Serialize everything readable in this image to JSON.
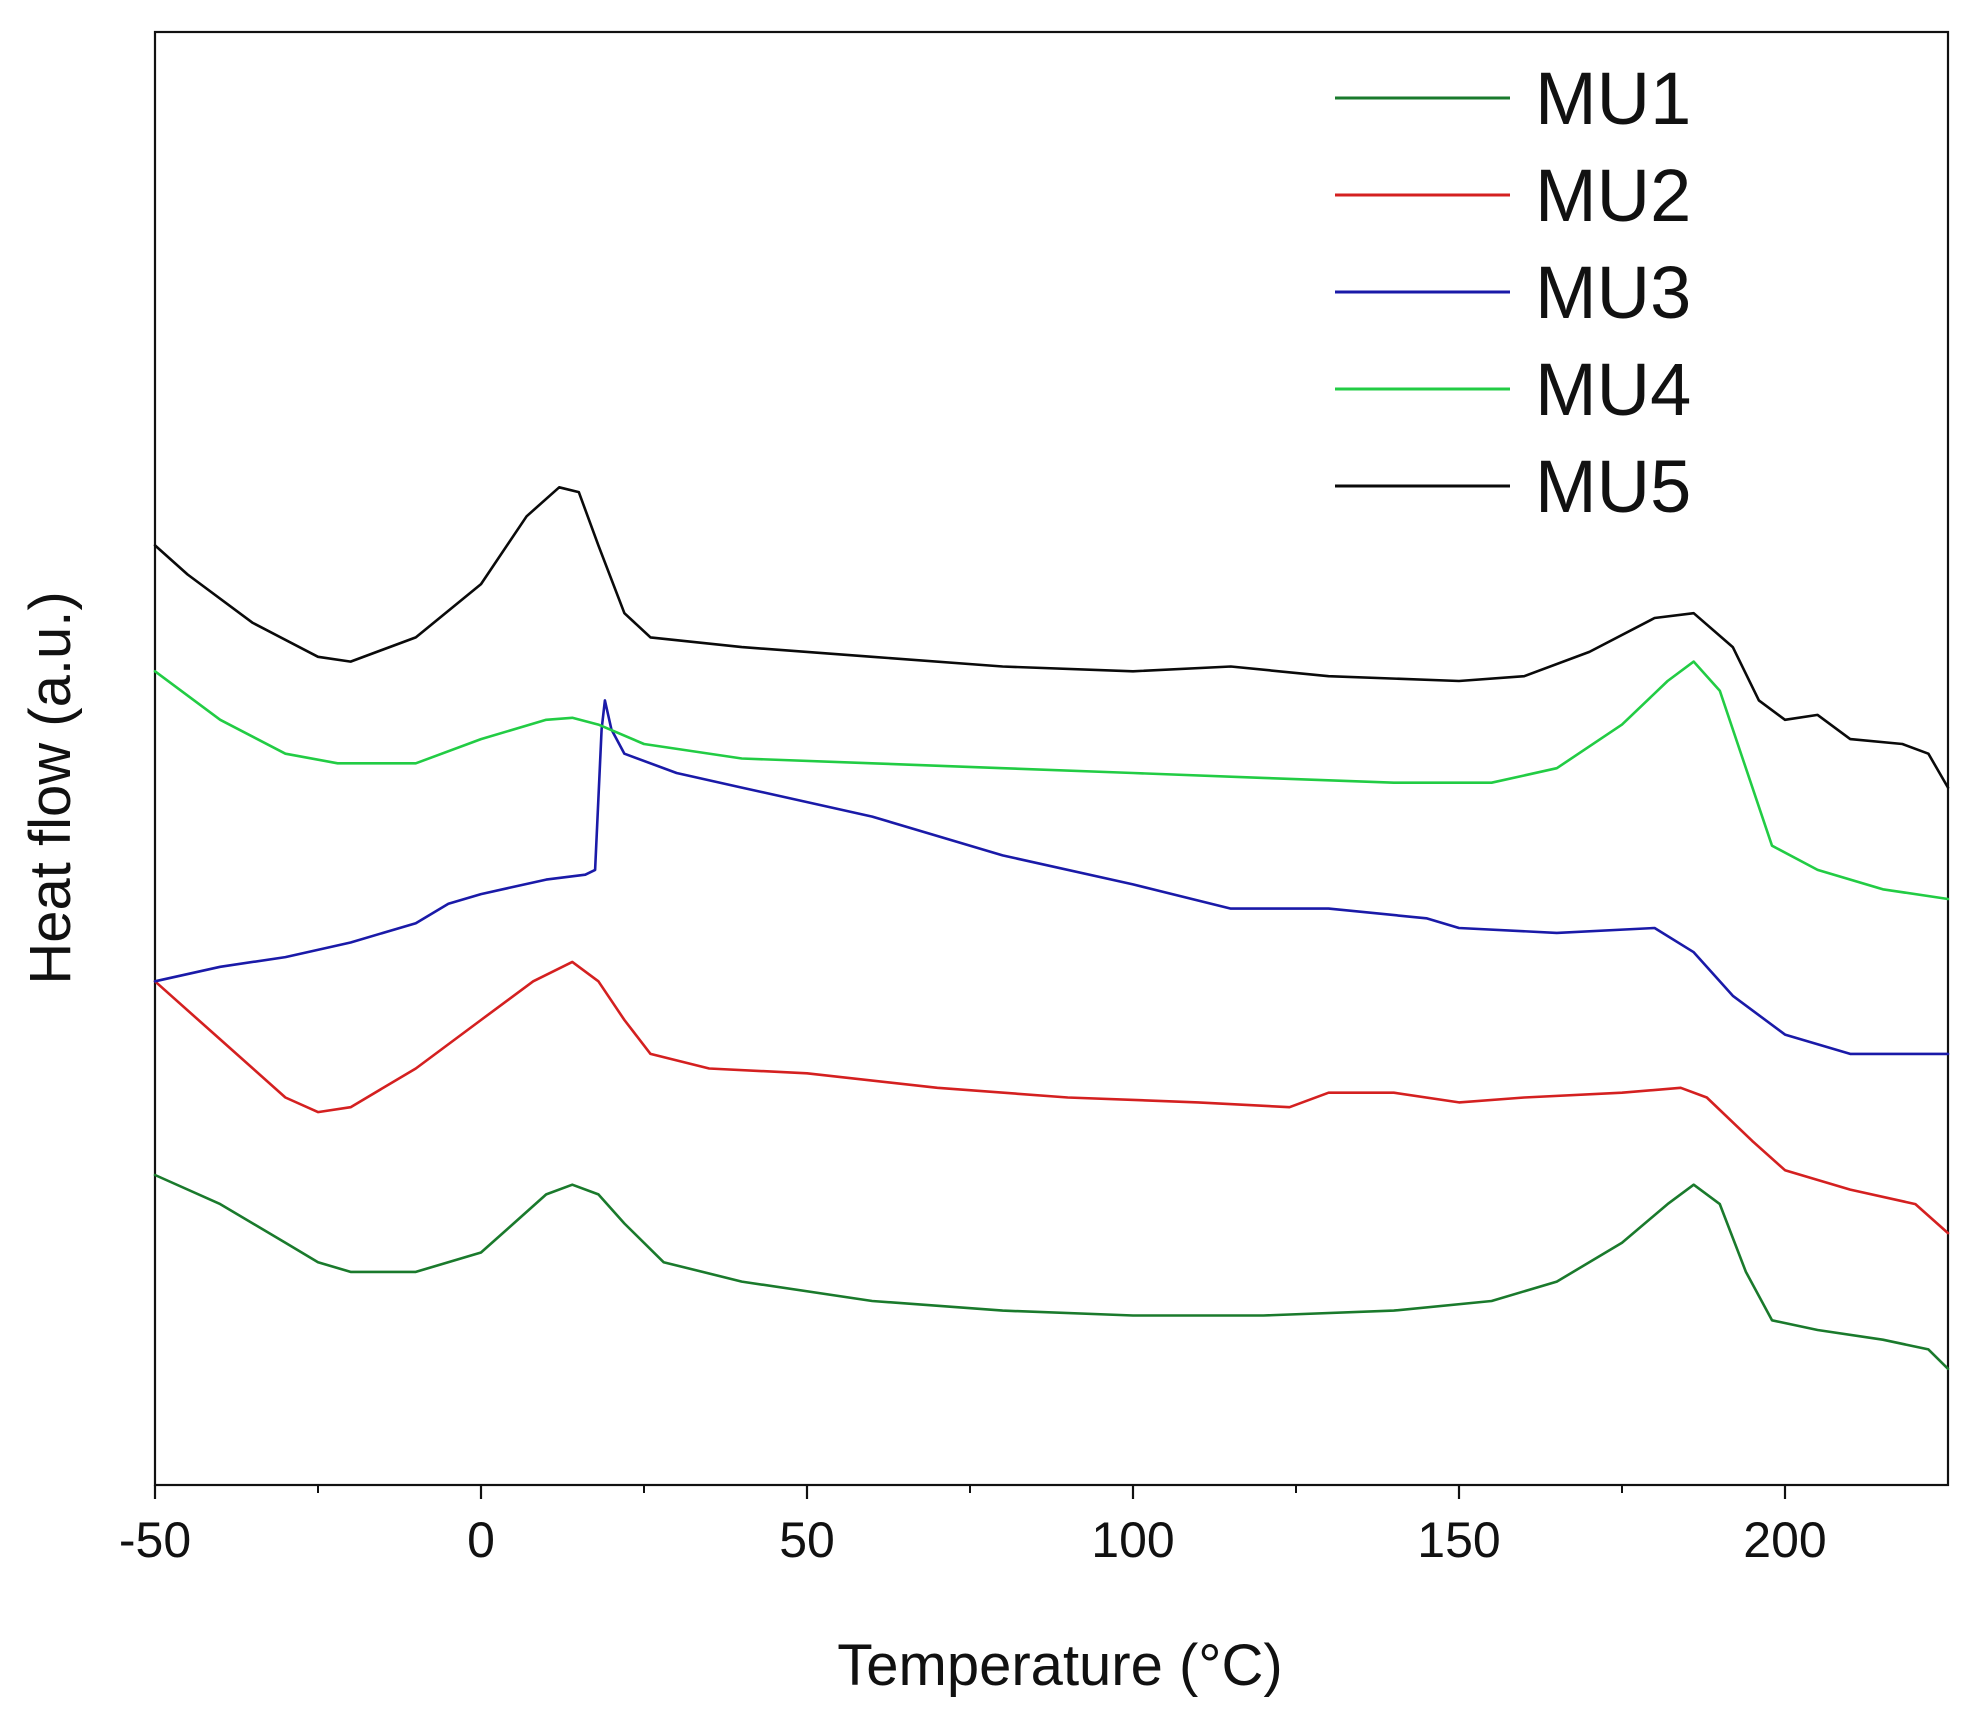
{
  "chart_data": {
    "type": "line",
    "title": "",
    "xlabel": "Temperature (°C)",
    "ylabel": "Heat flow (a.u.)",
    "xlim": [
      -50,
      225
    ],
    "ylim": [
      0,
      15
    ],
    "x_ticks": [
      -50,
      0,
      50,
      100,
      150,
      200
    ],
    "x_tick_labels": [
      "-50",
      "0",
      "50",
      "100",
      "150",
      "200"
    ],
    "x_minor_ticks": [
      -25,
      25,
      75,
      125,
      175
    ],
    "yticks_visible": false,
    "grid": false,
    "legend_position": "top-right",
    "series": [
      {
        "name": "MU1",
        "color": "#1a7a2c",
        "points": [
          [
            -50,
            3.2
          ],
          [
            -40,
            2.9
          ],
          [
            -30,
            2.5
          ],
          [
            -25,
            2.3
          ],
          [
            -20,
            2.2
          ],
          [
            -10,
            2.2
          ],
          [
            0,
            2.4
          ],
          [
            5,
            2.7
          ],
          [
            10,
            3.0
          ],
          [
            14,
            3.1
          ],
          [
            18,
            3.0
          ],
          [
            22,
            2.7
          ],
          [
            28,
            2.3
          ],
          [
            40,
            2.1
          ],
          [
            60,
            1.9
          ],
          [
            80,
            1.8
          ],
          [
            100,
            1.75
          ],
          [
            120,
            1.75
          ],
          [
            140,
            1.8
          ],
          [
            155,
            1.9
          ],
          [
            165,
            2.1
          ],
          [
            175,
            2.5
          ],
          [
            182,
            2.9
          ],
          [
            186,
            3.1
          ],
          [
            190,
            2.9
          ],
          [
            194,
            2.2
          ],
          [
            198,
            1.7
          ],
          [
            205,
            1.6
          ],
          [
            215,
            1.5
          ],
          [
            222,
            1.4
          ],
          [
            225,
            1.2
          ]
        ]
      },
      {
        "name": "MU2",
        "color": "#d42020",
        "points": [
          [
            -50,
            5.2
          ],
          [
            -40,
            4.6
          ],
          [
            -30,
            4.0
          ],
          [
            -25,
            3.85
          ],
          [
            -20,
            3.9
          ],
          [
            -10,
            4.3
          ],
          [
            0,
            4.8
          ],
          [
            8,
            5.2
          ],
          [
            14,
            5.4
          ],
          [
            18,
            5.2
          ],
          [
            22,
            4.8
          ],
          [
            26,
            4.45
          ],
          [
            35,
            4.3
          ],
          [
            50,
            4.25
          ],
          [
            70,
            4.1
          ],
          [
            90,
            4.0
          ],
          [
            110,
            3.95
          ],
          [
            124,
            3.9
          ],
          [
            130,
            4.05
          ],
          [
            140,
            4.05
          ],
          [
            150,
            3.95
          ],
          [
            160,
            4.0
          ],
          [
            175,
            4.05
          ],
          [
            184,
            4.1
          ],
          [
            188,
            4.0
          ],
          [
            195,
            3.55
          ],
          [
            200,
            3.25
          ],
          [
            210,
            3.05
          ],
          [
            220,
            2.9
          ],
          [
            225,
            2.6
          ]
        ]
      },
      {
        "name": "MU3",
        "color": "#1a1aa8",
        "points": [
          [
            -50,
            5.2
          ],
          [
            -40,
            5.35
          ],
          [
            -30,
            5.45
          ],
          [
            -20,
            5.6
          ],
          [
            -10,
            5.8
          ],
          [
            -5,
            6.0
          ],
          [
            0,
            6.1
          ],
          [
            10,
            6.25
          ],
          [
            16,
            6.3
          ],
          [
            17.5,
            6.35
          ],
          [
            18.5,
            7.8
          ],
          [
            19,
            8.1
          ],
          [
            20,
            7.8
          ],
          [
            22,
            7.55
          ],
          [
            30,
            7.35
          ],
          [
            40,
            7.2
          ],
          [
            60,
            6.9
          ],
          [
            80,
            6.5
          ],
          [
            100,
            6.2
          ],
          [
            115,
            5.95
          ],
          [
            130,
            5.95
          ],
          [
            145,
            5.85
          ],
          [
            150,
            5.75
          ],
          [
            165,
            5.7
          ],
          [
            180,
            5.75
          ],
          [
            186,
            5.5
          ],
          [
            192,
            5.05
          ],
          [
            200,
            4.65
          ],
          [
            210,
            4.45
          ],
          [
            225,
            4.45
          ]
        ]
      },
      {
        "name": "MU4",
        "color": "#22cc44",
        "points": [
          [
            -50,
            8.4
          ],
          [
            -40,
            7.9
          ],
          [
            -30,
            7.55
          ],
          [
            -22,
            7.45
          ],
          [
            -10,
            7.45
          ],
          [
            0,
            7.7
          ],
          [
            10,
            7.9
          ],
          [
            14,
            7.92
          ],
          [
            18,
            7.85
          ],
          [
            25,
            7.65
          ],
          [
            40,
            7.5
          ],
          [
            60,
            7.45
          ],
          [
            80,
            7.4
          ],
          [
            100,
            7.35
          ],
          [
            120,
            7.3
          ],
          [
            140,
            7.25
          ],
          [
            155,
            7.25
          ],
          [
            165,
            7.4
          ],
          [
            175,
            7.85
          ],
          [
            182,
            8.3
          ],
          [
            186,
            8.5
          ],
          [
            190,
            8.2
          ],
          [
            194,
            7.4
          ],
          [
            198,
            6.6
          ],
          [
            205,
            6.35
          ],
          [
            215,
            6.15
          ],
          [
            225,
            6.05
          ]
        ]
      },
      {
        "name": "MU5",
        "color": "#0a0a0a",
        "points": [
          [
            -50,
            9.7
          ],
          [
            -45,
            9.4
          ],
          [
            -35,
            8.9
          ],
          [
            -25,
            8.55
          ],
          [
            -20,
            8.5
          ],
          [
            -10,
            8.75
          ],
          [
            0,
            9.3
          ],
          [
            7,
            10.0
          ],
          [
            12,
            10.3
          ],
          [
            15,
            10.25
          ],
          [
            18,
            9.7
          ],
          [
            22,
            9.0
          ],
          [
            26,
            8.75
          ],
          [
            40,
            8.65
          ],
          [
            60,
            8.55
          ],
          [
            80,
            8.45
          ],
          [
            100,
            8.4
          ],
          [
            115,
            8.45
          ],
          [
            130,
            8.35
          ],
          [
            150,
            8.3
          ],
          [
            160,
            8.35
          ],
          [
            170,
            8.6
          ],
          [
            180,
            8.95
          ],
          [
            186,
            9.0
          ],
          [
            192,
            8.65
          ],
          [
            196,
            8.1
          ],
          [
            200,
            7.9
          ],
          [
            205,
            7.95
          ],
          [
            210,
            7.7
          ],
          [
            218,
            7.65
          ],
          [
            222,
            7.55
          ],
          [
            225,
            7.2
          ]
        ]
      }
    ]
  }
}
